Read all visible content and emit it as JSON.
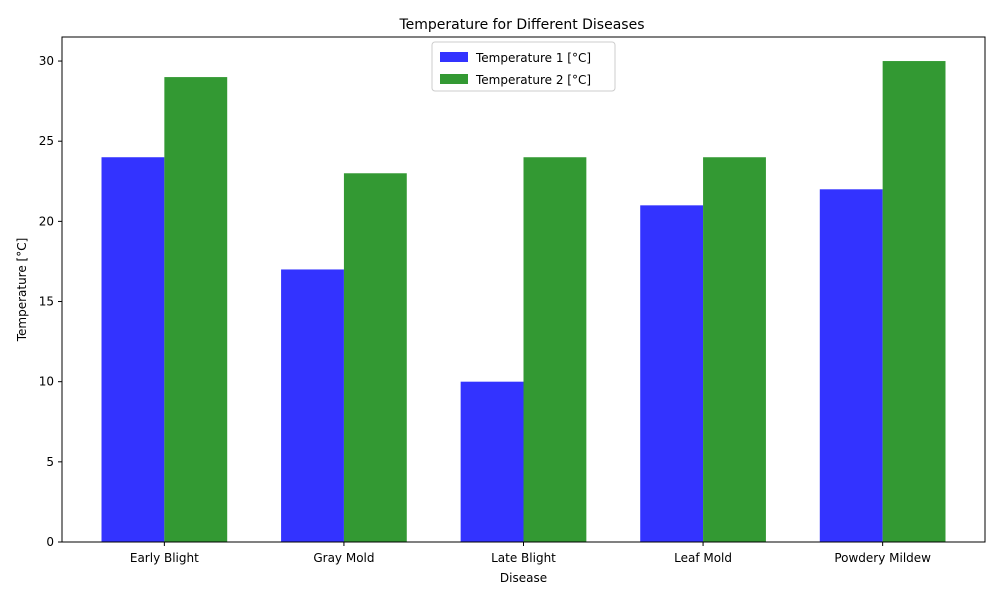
{
  "chart_data": {
    "type": "bar",
    "title": "Temperature for Different Diseases",
    "xlabel": "Disease",
    "ylabel": "Temperature [°C]",
    "categories": [
      "Early Blight",
      "Gray Mold",
      "Late Blight",
      "Leaf Mold",
      "Powdery Mildew"
    ],
    "series": [
      {
        "name": "Temperature 1 [°C]",
        "values": [
          24,
          17,
          10,
          21,
          22
        ],
        "color": "#3333ff"
      },
      {
        "name": "Temperature 2 [°C]",
        "values": [
          29,
          23,
          24,
          24,
          30
        ],
        "color": "#339933"
      }
    ],
    "ylim": [
      0,
      31.5
    ],
    "yticks": [
      0,
      5,
      10,
      15,
      20,
      25,
      30
    ],
    "grid": false,
    "legend_position": "top-center"
  }
}
